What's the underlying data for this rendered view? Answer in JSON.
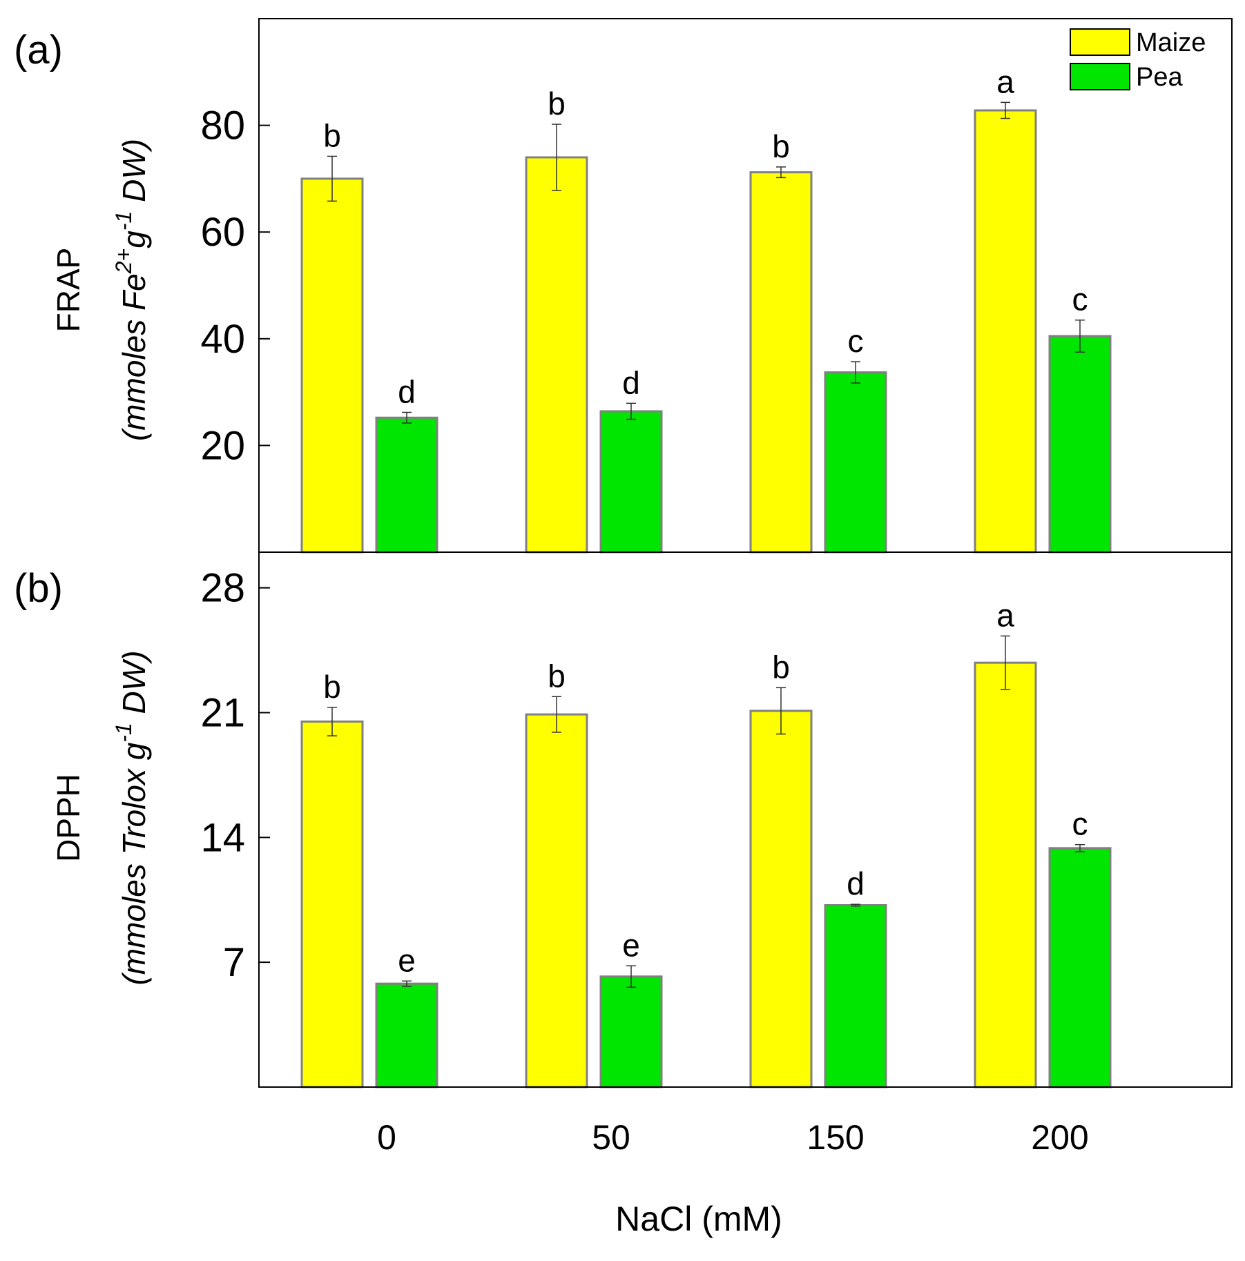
{
  "chart_data": [
    {
      "panel": "(a)",
      "type": "bar",
      "categories": [
        "0",
        "50",
        "150",
        "200"
      ],
      "ylim": [
        0,
        100
      ],
      "yticks": [
        20,
        40,
        60,
        80
      ],
      "ylabel": "FRAP",
      "ylabel_unit": {
        "pre": "(mmoles Fe",
        "sup1": "2+",
        "mid": "g",
        "sup2": "-1",
        "post": " DW)"
      },
      "series": [
        {
          "name": "Maize",
          "color": "#ffff00",
          "values": [
            70,
            74,
            71.2,
            82.8
          ],
          "errors": [
            4.2,
            6.2,
            1.0,
            1.5
          ],
          "letters": [
            "b",
            "b",
            "b",
            "a"
          ]
        },
        {
          "name": "Pea",
          "color": "#00e600",
          "values": [
            25.2,
            26.4,
            33.7,
            40.5
          ],
          "errors": [
            1.0,
            1.5,
            2.0,
            3.0
          ],
          "letters": [
            "d",
            "d",
            "c",
            "c"
          ]
        }
      ]
    },
    {
      "panel": "(b)",
      "type": "bar",
      "categories": [
        "0",
        "50",
        "150",
        "200"
      ],
      "ylim": [
        0,
        30
      ],
      "yticks": [
        7,
        14,
        21,
        28
      ],
      "ylabel": "DPPH",
      "ylabel_unit": {
        "pre": "(mmoles Trolox g",
        "sup": "-1",
        "post": " DW)"
      },
      "series": [
        {
          "name": "Maize",
          "color": "#ffff00",
          "values": [
            20.5,
            20.9,
            21.1,
            23.8
          ],
          "errors": [
            0.8,
            1.0,
            1.3,
            1.5
          ],
          "letters": [
            "b",
            "b",
            "b",
            "a"
          ]
        },
        {
          "name": "Pea",
          "color": "#00e600",
          "values": [
            5.8,
            6.2,
            10.2,
            13.4
          ],
          "errors": [
            0.15,
            0.6,
            0.05,
            0.2
          ],
          "letters": [
            "e",
            "e",
            "d",
            "c"
          ]
        }
      ]
    }
  ],
  "legend": [
    {
      "label": "Maize",
      "color": "#ffff00"
    },
    {
      "label": "Pea",
      "color": "#00e600"
    }
  ],
  "xlabel": "NaCl (mM)",
  "bar_edge_color": "#808080",
  "axis_color": "#000000"
}
